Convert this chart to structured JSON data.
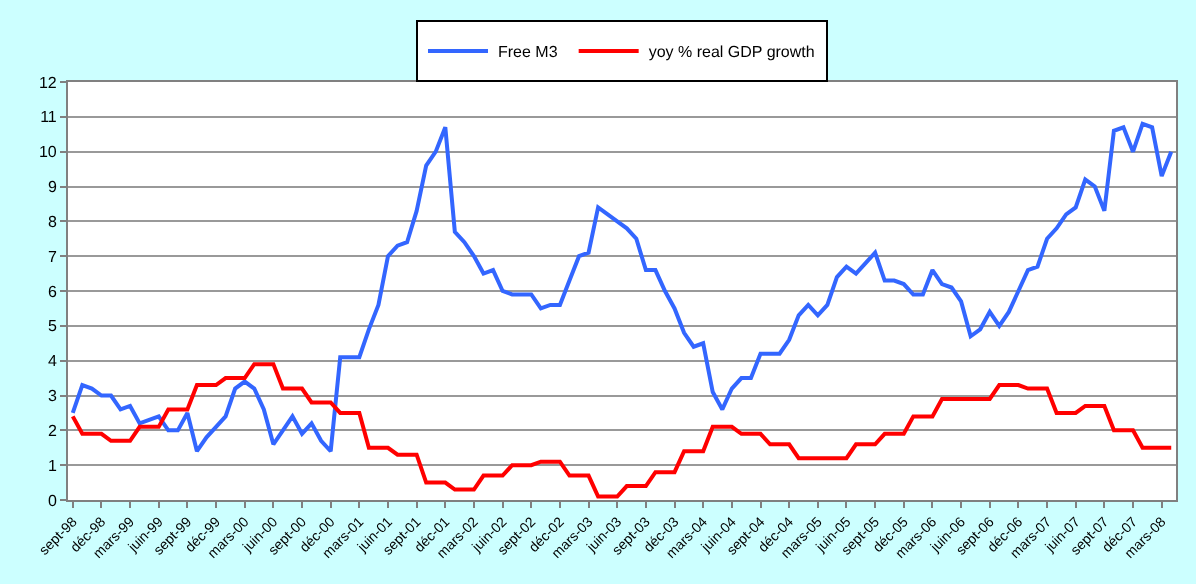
{
  "chart_data": {
    "type": "line",
    "categories": [
      "sept-98",
      null,
      null,
      "déc-98",
      null,
      null,
      "mars-99",
      null,
      null,
      "juin-99",
      null,
      null,
      "sept-99",
      null,
      null,
      "déc-99",
      null,
      null,
      "mars-00",
      null,
      null,
      "juin-00",
      null,
      null,
      "sept-00",
      null,
      null,
      "déc-00",
      null,
      null,
      "mars-01",
      null,
      null,
      "juin-01",
      null,
      null,
      "sept-01",
      null,
      null,
      "déc-01",
      null,
      null,
      "mars-02",
      null,
      null,
      "juin-02",
      null,
      null,
      "sept-02",
      null,
      null,
      "déc-02",
      null,
      null,
      "mars-03",
      null,
      null,
      "juin-03",
      null,
      null,
      "sept-03",
      null,
      null,
      "déc-03",
      null,
      null,
      "mars-04",
      null,
      null,
      "juin-04",
      null,
      null,
      "sept-04",
      null,
      null,
      "déc-04",
      null,
      null,
      "mars-05",
      null,
      null,
      "juin-05",
      null,
      null,
      "sept-05",
      null,
      null,
      "déc-05",
      null,
      null,
      "mars-06",
      null,
      null,
      "juin-06",
      null,
      null,
      "sept-06",
      null,
      null,
      "déc-06",
      null,
      null,
      "mars-07",
      null,
      null,
      "juin-07",
      null,
      null,
      "sept-07",
      null,
      null,
      "déc-07",
      null,
      null,
      "mars-08",
      null
    ],
    "series": [
      {
        "name": "Free M3",
        "color": "#3366ff",
        "values": [
          2.5,
          3.3,
          3.2,
          3.0,
          3.0,
          2.6,
          2.7,
          2.2,
          2.3,
          2.4,
          2.0,
          2.0,
          2.5,
          1.4,
          1.8,
          2.1,
          2.4,
          3.2,
          3.4,
          3.2,
          2.6,
          1.6,
          2.0,
          2.4,
          1.9,
          2.2,
          1.7,
          1.4,
          4.1,
          4.1,
          4.1,
          4.9,
          5.6,
          7.0,
          7.3,
          7.4,
          8.3,
          9.6,
          10.0,
          10.7,
          7.7,
          7.4,
          7.0,
          6.5,
          6.6,
          6.0,
          5.9,
          5.9,
          5.9,
          5.5,
          5.6,
          5.6,
          6.3,
          7.0,
          7.1,
          8.4,
          8.2,
          8.0,
          7.8,
          7.5,
          6.6,
          6.6,
          6.0,
          5.5,
          4.8,
          4.4,
          4.5,
          3.1,
          2.6,
          3.2,
          3.5,
          3.5,
          4.2,
          4.2,
          4.2,
          4.6,
          5.3,
          5.6,
          5.3,
          5.6,
          6.4,
          6.7,
          6.5,
          6.8,
          7.1,
          6.3,
          6.3,
          6.2,
          5.9,
          5.9,
          6.6,
          6.2,
          6.1,
          5.7,
          4.7,
          4.9,
          5.4,
          5.0,
          5.4,
          6.0,
          6.6,
          6.7,
          7.5,
          7.8,
          8.2,
          8.4,
          9.2,
          9.0,
          8.3,
          10.6,
          10.7,
          10.0,
          10.8,
          10.7,
          9.3,
          10.0
        ]
      },
      {
        "name": "yoy % real GDP growth",
        "color": "#ff0000",
        "values": [
          2.4,
          1.9,
          1.9,
          1.9,
          1.7,
          1.7,
          1.7,
          2.1,
          2.1,
          2.1,
          2.6,
          2.6,
          2.6,
          3.3,
          3.3,
          3.3,
          3.5,
          3.5,
          3.5,
          3.9,
          3.9,
          3.9,
          3.2,
          3.2,
          3.2,
          2.8,
          2.8,
          2.8,
          2.5,
          2.5,
          2.5,
          1.5,
          1.5,
          1.5,
          1.3,
          1.3,
          1.3,
          0.5,
          0.5,
          0.5,
          0.3,
          0.3,
          0.3,
          0.7,
          0.7,
          0.7,
          1.0,
          1.0,
          1.0,
          1.1,
          1.1,
          1.1,
          0.7,
          0.7,
          0.7,
          0.1,
          0.1,
          0.1,
          0.4,
          0.4,
          0.4,
          0.8,
          0.8,
          0.8,
          1.4,
          1.4,
          1.4,
          2.1,
          2.1,
          2.1,
          1.9,
          1.9,
          1.9,
          1.6,
          1.6,
          1.6,
          1.2,
          1.2,
          1.2,
          1.2,
          1.2,
          1.2,
          1.6,
          1.6,
          1.6,
          1.9,
          1.9,
          1.9,
          2.4,
          2.4,
          2.4,
          2.9,
          2.9,
          2.9,
          2.9,
          2.9,
          2.9,
          3.3,
          3.3,
          3.3,
          3.2,
          3.2,
          3.2,
          2.5,
          2.5,
          2.5,
          2.7,
          2.7,
          2.7,
          2.0,
          2.0,
          2.0,
          1.5,
          1.5,
          1.5,
          1.5
        ]
      }
    ],
    "ylim": [
      0,
      12
    ],
    "yticks": [
      0,
      1,
      2,
      3,
      4,
      5,
      6,
      7,
      8,
      9,
      10,
      11,
      12
    ],
    "grid": "y",
    "legend": "top"
  }
}
